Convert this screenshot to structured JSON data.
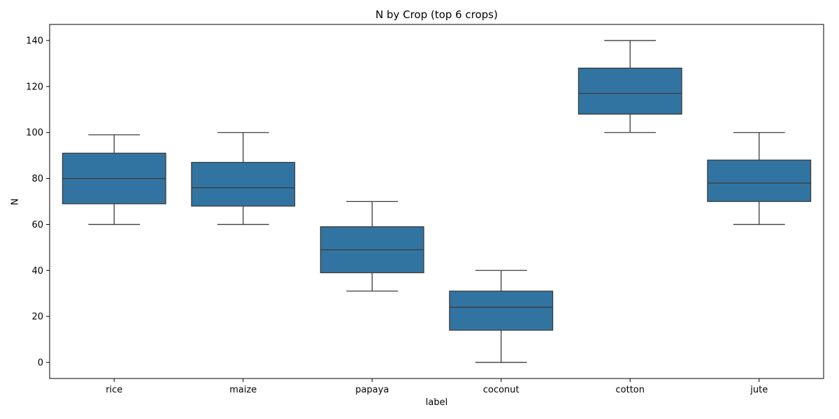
{
  "chart_data": {
    "type": "box",
    "title": "N by Crop (top 6 crops)",
    "xlabel": "label",
    "ylabel": "N",
    "ylim": [
      -7,
      147
    ],
    "yticks": [
      0,
      20,
      40,
      60,
      80,
      100,
      120,
      140
    ],
    "grid": false,
    "legend": "none",
    "box_color": "#3274a1",
    "line_color": "#3b3b3b",
    "categories": [
      "rice",
      "maize",
      "papaya",
      "coconut",
      "cotton",
      "jute"
    ],
    "boxes": [
      {
        "label": "rice",
        "whisker_low": 60,
        "q1": 69,
        "median": 80,
        "q3": 91,
        "whisker_high": 99
      },
      {
        "label": "maize",
        "whisker_low": 60,
        "q1": 68,
        "median": 76,
        "q3": 87,
        "whisker_high": 100
      },
      {
        "label": "papaya",
        "whisker_low": 31,
        "q1": 39,
        "median": 49,
        "q3": 59,
        "whisker_high": 70
      },
      {
        "label": "coconut",
        "whisker_low": 0,
        "q1": 14,
        "median": 24,
        "q3": 31,
        "whisker_high": 40
      },
      {
        "label": "cotton",
        "whisker_low": 100,
        "q1": 108,
        "median": 117,
        "q3": 128,
        "whisker_high": 140
      },
      {
        "label": "jute",
        "whisker_low": 60,
        "q1": 70,
        "median": 78,
        "q3": 88,
        "whisker_high": 100
      }
    ]
  }
}
